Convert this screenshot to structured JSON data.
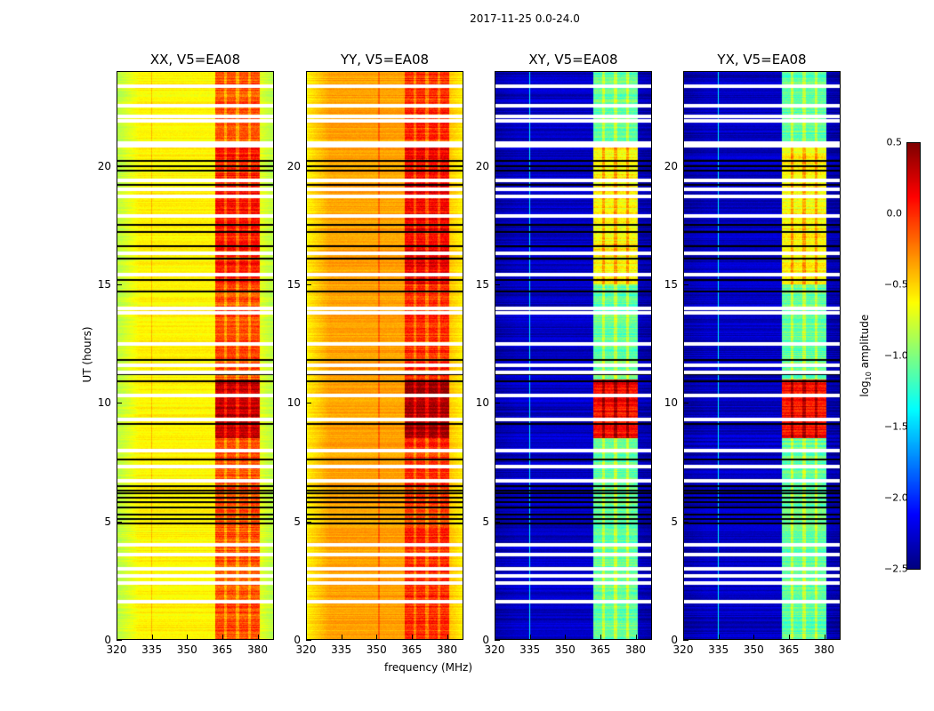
{
  "chart_data": {
    "type": "heatmap",
    "title": "2017-11-25 0.0-24.0",
    "xlabel": "frequency (MHz)",
    "ylabel": "UT (hours)",
    "xlim": [
      320,
      387
    ],
    "ylim": [
      0,
      24
    ],
    "xticks": [
      "320",
      "335",
      "350",
      "365",
      "380"
    ],
    "yticks": [
      "0",
      "5",
      "10",
      "15",
      "20"
    ],
    "colorbar": {
      "label_main": "log",
      "label_sub": "10",
      "label_rest": " amplitude",
      "range": [
        -2.5,
        0.5
      ],
      "ticks": [
        "0.5",
        "0.0",
        "−0.5",
        "−1.0",
        "−1.5",
        "−2.0",
        "−2.5"
      ],
      "colormap": "jet"
    },
    "panels": [
      {
        "title": "XX, V5=EA08",
        "base_level": -0.6,
        "band_level": -0.1,
        "peak_level": 0.3,
        "rfi_line_mhz": 335
      },
      {
        "title": "YY, V5=EA08",
        "base_level": -0.35,
        "band_level": 0.0,
        "peak_level": 0.4,
        "rfi_line_mhz": 351
      },
      {
        "title": "XY, V5=EA08",
        "base_level": -2.3,
        "band_level": -1.1,
        "peak_level": 0.1,
        "rfi_line_mhz": 335
      },
      {
        "title": "YX, V5=EA08",
        "base_level": -2.3,
        "band_level": -1.1,
        "peak_level": 0.1,
        "rfi_line_mhz": 335
      }
    ],
    "band_mhz": [
      362,
      381
    ],
    "band_streaks_mhz": [
      366.5,
      371.5,
      376.5
    ],
    "peak_hours": [
      8.5,
      11
    ],
    "flagged_white_hours": [
      23.35,
      22.55,
      22.1,
      21.9,
      20.95,
      20.85,
      19.4,
      19.0,
      18.7,
      17.9,
      16.3,
      15.4,
      14.0,
      13.8,
      12.5,
      11.6,
      11.3,
      10.3,
      9.3,
      8.0,
      7.3,
      6.7,
      4.0,
      3.6,
      3.0,
      2.7,
      2.4,
      1.6
    ],
    "flagged_black_hours": [
      21.0,
      20.2,
      20.0,
      19.8,
      19.2,
      17.5,
      17.2,
      16.6,
      16.1,
      15.2,
      14.7,
      11.8,
      11.2,
      10.9,
      9.1,
      7.6,
      6.5,
      6.3,
      6.2,
      6.0,
      5.8,
      5.6,
      5.3,
      5.1,
      4.9
    ]
  }
}
